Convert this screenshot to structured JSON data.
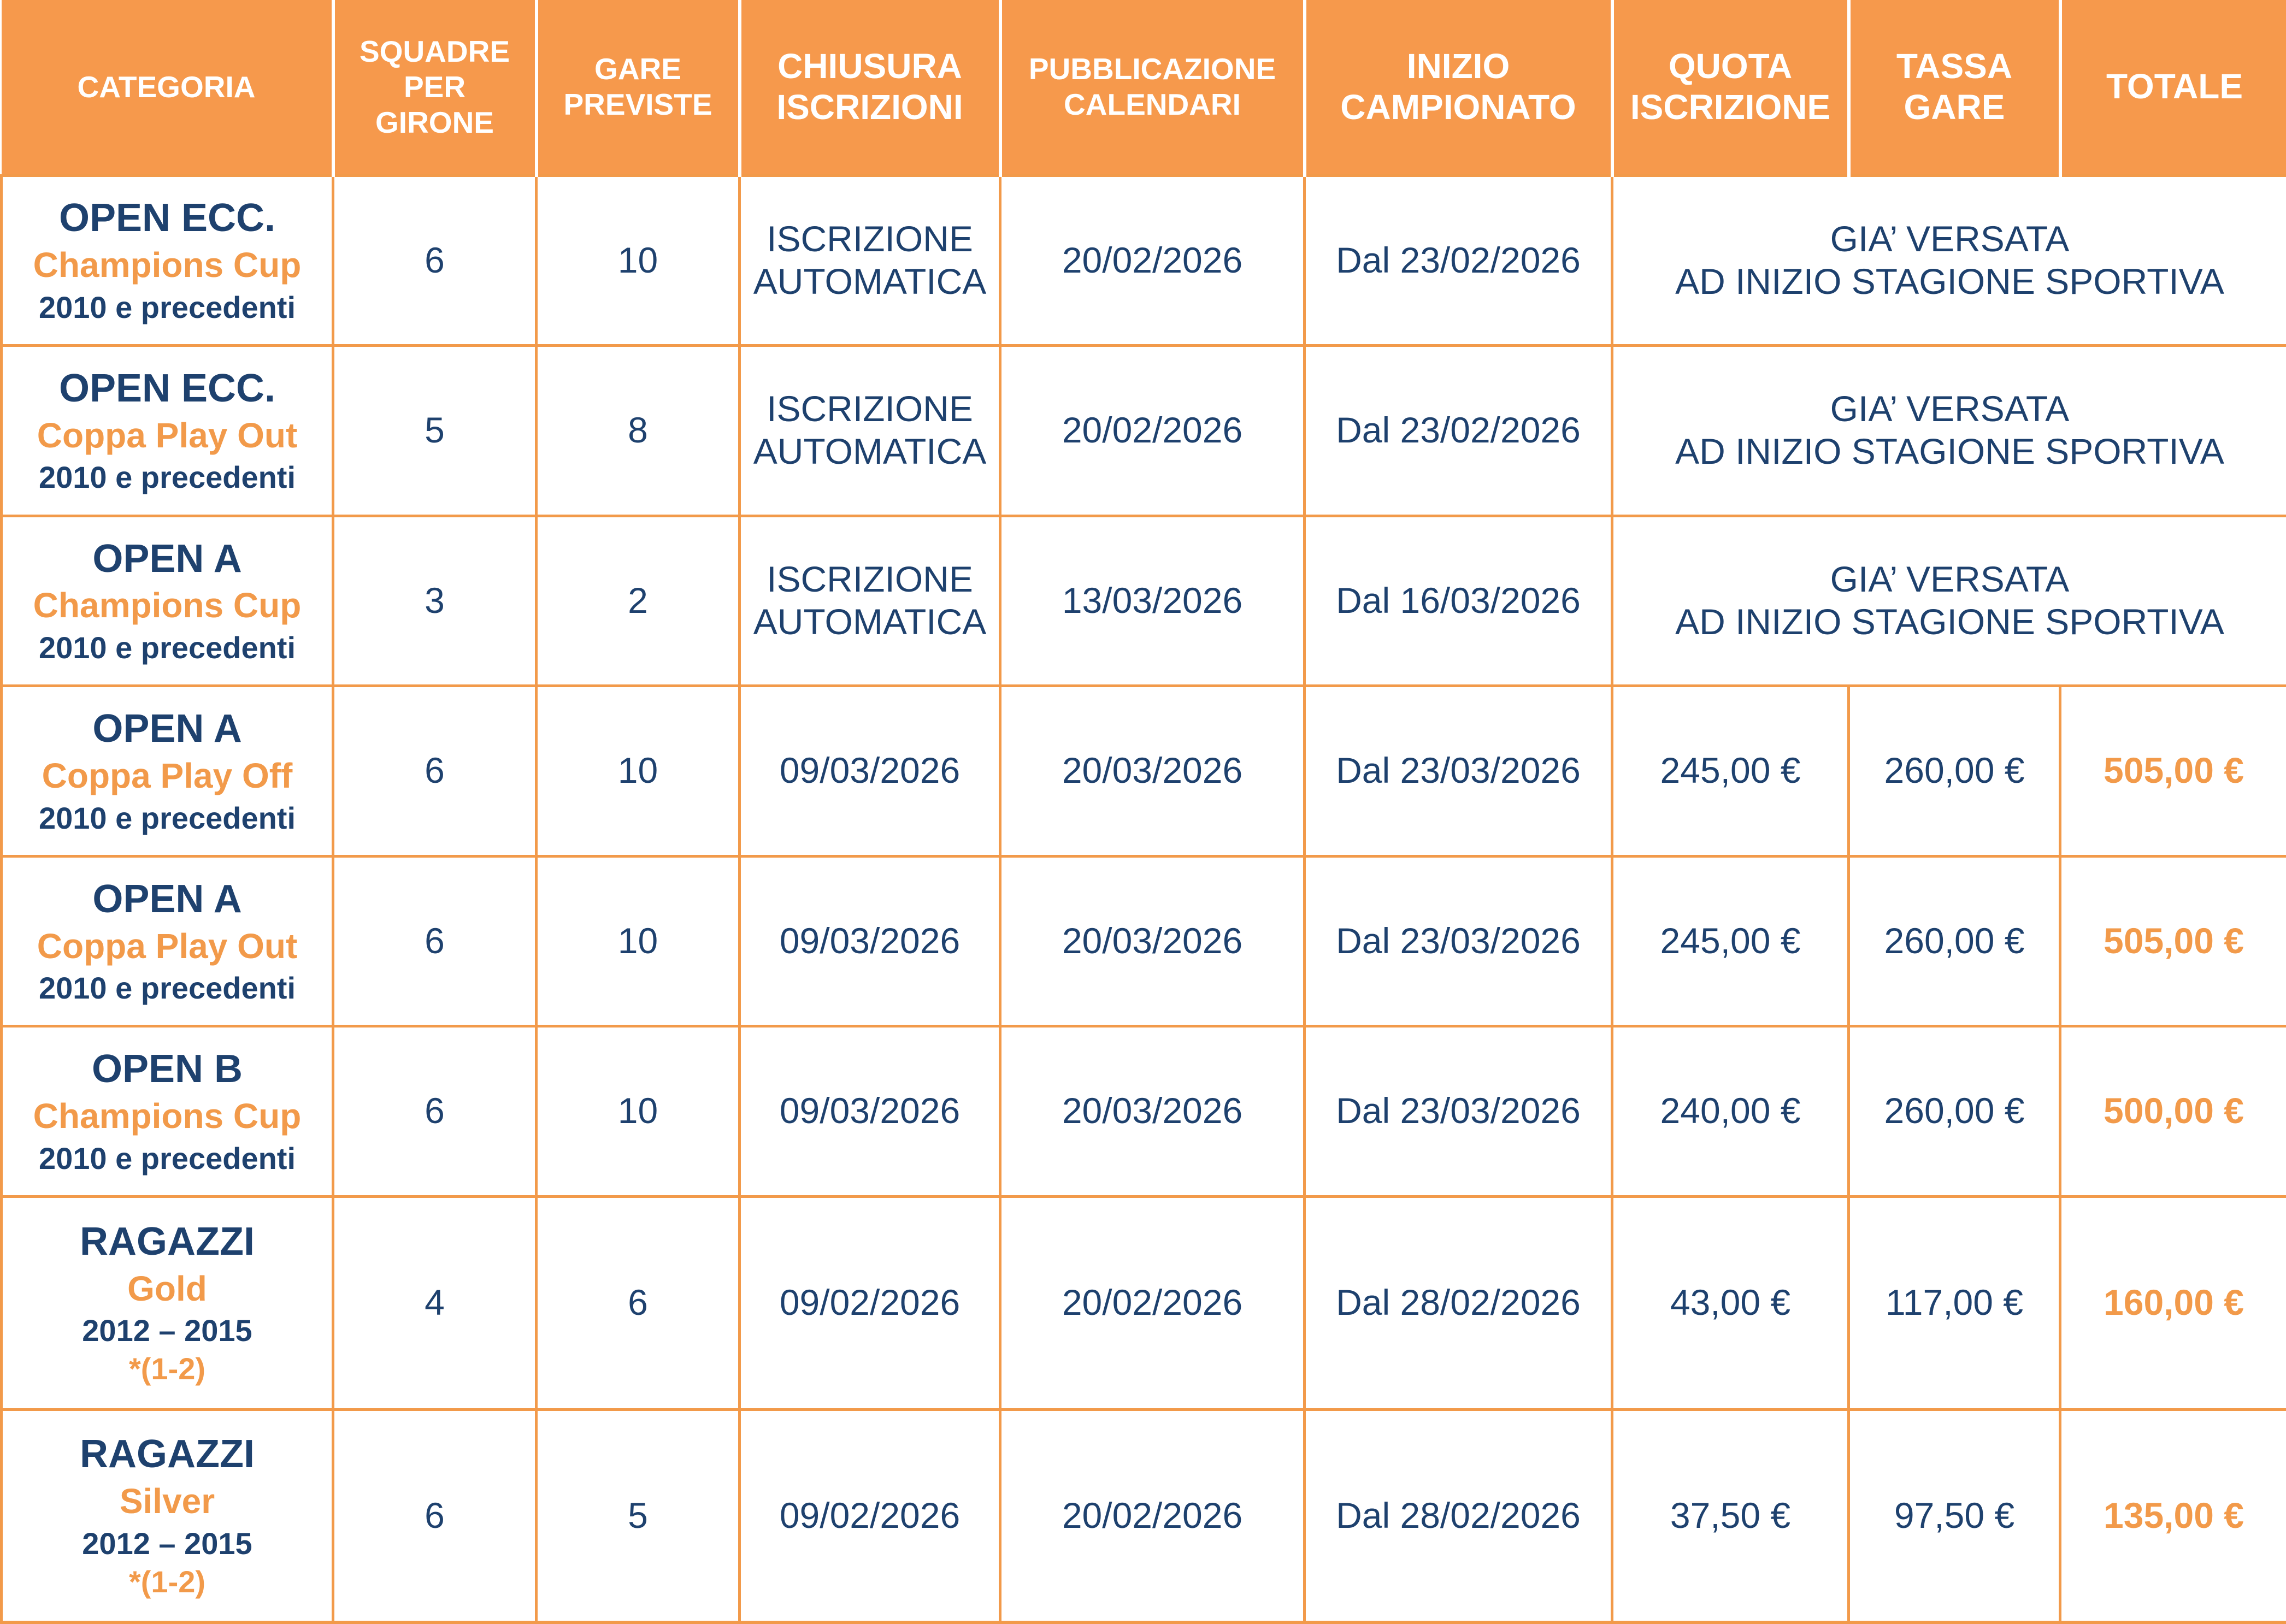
{
  "headers": {
    "categoria": "CATEGORIA",
    "squadre": [
      "SQUADRE",
      "PER",
      "GIRONE"
    ],
    "gare": [
      "GARE",
      "PREVISTE"
    ],
    "chiusura": [
      "CHIUSURA",
      "ISCRIZIONI"
    ],
    "pubblicazione": [
      "PUBBLICAZIONE",
      "CALENDARI"
    ],
    "inizio": [
      "INIZIO",
      "CAMPIONATO"
    ],
    "quota": [
      "QUOTA",
      "ISCRIZIONE"
    ],
    "tassa": [
      "TASSA",
      "GARE"
    ],
    "totale": "TOTALE"
  },
  "rows": [
    {
      "name": "OPEN ECC.",
      "sub": "Champions Cup",
      "year": "2010 e precedenti",
      "note": "",
      "squadre": "6",
      "gare": "10",
      "chiusura": [
        "ISCRIZIONE",
        "AUTOMATICA"
      ],
      "pubblicazione": "20/02/2026",
      "inizio": "Dal 23/02/2026",
      "fee_note": [
        "GIA’ VERSATA",
        "AD INIZIO STAGIONE SPORTIVA"
      ]
    },
    {
      "name": "OPEN ECC.",
      "sub": "Coppa Play Out",
      "year": "2010 e precedenti",
      "note": "",
      "squadre": "5",
      "gare": "8",
      "chiusura": [
        "ISCRIZIONE",
        "AUTOMATICA"
      ],
      "pubblicazione": "20/02/2026",
      "inizio": "Dal 23/02/2026",
      "fee_note": [
        "GIA’ VERSATA",
        "AD INIZIO STAGIONE SPORTIVA"
      ]
    },
    {
      "name": "OPEN A",
      "sub": "Champions Cup",
      "year": "2010 e precedenti",
      "note": "",
      "squadre": "3",
      "gare": "2",
      "chiusura": [
        "ISCRIZIONE",
        "AUTOMATICA"
      ],
      "pubblicazione": "13/03/2026",
      "inizio": "Dal 16/03/2026",
      "fee_note": [
        "GIA’ VERSATA",
        "AD INIZIO STAGIONE SPORTIVA"
      ]
    },
    {
      "name": "OPEN A",
      "sub": "Coppa Play Off",
      "year": "2010 e precedenti",
      "note": "",
      "squadre": "6",
      "gare": "10",
      "chiusura": "09/03/2026",
      "pubblicazione": "20/03/2026",
      "inizio": "Dal 23/03/2026",
      "quota": "245,00 €",
      "tassa": "260,00 €",
      "totale": "505,00 €"
    },
    {
      "name": "OPEN A",
      "sub": "Coppa Play Out",
      "year": "2010 e precedenti",
      "note": "",
      "squadre": "6",
      "gare": "10",
      "chiusura": "09/03/2026",
      "pubblicazione": "20/03/2026",
      "inizio": "Dal 23/03/2026",
      "quota": "245,00 €",
      "tassa": "260,00 €",
      "totale": "505,00 €"
    },
    {
      "name": "OPEN B",
      "sub": "Champions Cup",
      "year": "2010 e precedenti",
      "note": "",
      "squadre": "6",
      "gare": "10",
      "chiusura": "09/03/2026",
      "pubblicazione": "20/03/2026",
      "inizio": "Dal 23/03/2026",
      "quota": "240,00 €",
      "tassa": "260,00 €",
      "totale": "500,00 €"
    },
    {
      "name": "RAGAZZI",
      "sub": "Gold",
      "year": "2012 – 2015",
      "note": "*(1-2)",
      "squadre": "4",
      "gare": "6",
      "chiusura": "09/02/2026",
      "pubblicazione": "20/02/2026",
      "inizio": "Dal 28/02/2026",
      "quota": "43,00 €",
      "tassa": "117,00 €",
      "totale": "160,00 €"
    },
    {
      "name": "RAGAZZI",
      "sub": "Silver",
      "year": "2012 – 2015",
      "note": "*(1-2)",
      "squadre": "6",
      "gare": "5",
      "chiusura": "09/02/2026",
      "pubblicazione": "20/02/2026",
      "inizio": "Dal 28/02/2026",
      "quota": "37,50 €",
      "tassa": "97,50 €",
      "totale": "135,00 €"
    }
  ],
  "colors": {
    "accent": "#f6994c",
    "text": "#1e416e",
    "orange_text": "#f29a4a"
  }
}
